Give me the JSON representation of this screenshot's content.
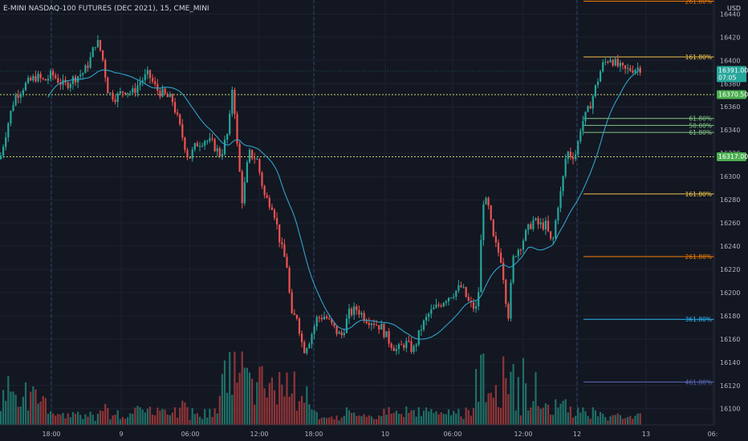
{
  "chart_data": {
    "type": "candlestick",
    "title": "E-MINI NASDAQ-100 FUTURES (DEC 2021), 15, CME_MINI",
    "y_unit": "USD",
    "ylim": [
      16086,
      16452
    ],
    "y_ticks": [
      16100,
      16120,
      16140,
      16160,
      16180,
      16200,
      16220,
      16240,
      16260,
      16280,
      16300,
      16320,
      16340,
      16360,
      16380,
      16400,
      16420,
      16440
    ],
    "x_ticks": [
      "18:00",
      "9",
      "06:00",
      "12:00",
      "18:00",
      "10",
      "06:00",
      "12:00",
      "12",
      "13",
      "06:"
    ],
    "grid": true,
    "price_labels": [
      {
        "value": 16391.0,
        "text": "16391.00",
        "subtext": "07:05",
        "color": "#26a69a"
      },
      {
        "value": 16370.5,
        "text": "16370.50",
        "color": "#4caf50"
      },
      {
        "value": 16317.0,
        "text": "16317.00",
        "color": "#4caf50"
      }
    ],
    "horizontal_lines": [
      {
        "value": 16370.5,
        "style": "dotted",
        "color": "#c7d66a"
      },
      {
        "value": 16317.0,
        "style": "dotted",
        "color": "#c7d66a"
      }
    ],
    "fib_levels": [
      {
        "label": "261.80%",
        "value": 16451,
        "color": "#f57c00"
      },
      {
        "label": "161.80%",
        "value": 16403,
        "color": "#f3c34b"
      },
      {
        "label": "61.80%",
        "value": 16350,
        "color": "#81c784"
      },
      {
        "label": "50.00%",
        "value": 16344,
        "color": "#81c784"
      },
      {
        "label": "61.80%",
        "value": 16338,
        "color": "#81c784"
      },
      {
        "label": "161.80%",
        "value": 16285,
        "color": "#f3c34b"
      },
      {
        "label": "261.80%",
        "value": 16231,
        "color": "#f57c00"
      },
      {
        "label": "361.80%",
        "value": 16177,
        "color": "#29b6f6"
      },
      {
        "label": "461.80%",
        "value": 16123,
        "color": "#5c6bc0"
      }
    ],
    "price_path": [
      [
        0,
        16315
      ],
      [
        8,
        16340
      ],
      [
        18,
        16368
      ],
      [
        30,
        16378
      ],
      [
        45,
        16386
      ],
      [
        55,
        16382
      ],
      [
        65,
        16388
      ],
      [
        80,
        16378
      ],
      [
        95,
        16386
      ],
      [
        105,
        16390
      ],
      [
        113,
        16402
      ],
      [
        120,
        16418
      ],
      [
        127,
        16405
      ],
      [
        135,
        16372
      ],
      [
        145,
        16368
      ],
      [
        155,
        16375
      ],
      [
        165,
        16372
      ],
      [
        175,
        16382
      ],
      [
        185,
        16388
      ],
      [
        195,
        16375
      ],
      [
        205,
        16370
      ],
      [
        215,
        16365
      ],
      [
        225,
        16340
      ],
      [
        235,
        16315
      ],
      [
        245,
        16328
      ],
      [
        255,
        16332
      ],
      [
        265,
        16328
      ],
      [
        275,
        16318
      ],
      [
        285,
        16340
      ],
      [
        290,
        16382
      ],
      [
        295,
        16330
      ],
      [
        302,
        16278
      ],
      [
        310,
        16320
      ],
      [
        320,
        16315
      ],
      [
        330,
        16282
      ],
      [
        340,
        16275
      ],
      [
        350,
        16240
      ],
      [
        358,
        16222
      ],
      [
        363,
        16178
      ],
      [
        370,
        16180
      ],
      [
        378,
        16150
      ],
      [
        386,
        16160
      ],
      [
        395,
        16178
      ],
      [
        405,
        16180
      ],
      [
        415,
        16170
      ],
      [
        425,
        16162
      ],
      [
        435,
        16182
      ],
      [
        445,
        16186
      ],
      [
        455,
        16178
      ],
      [
        465,
        16175
      ],
      [
        475,
        16170
      ],
      [
        485,
        16158
      ],
      [
        495,
        16150
      ],
      [
        505,
        16157
      ],
      [
        515,
        16150
      ],
      [
        525,
        16170
      ],
      [
        535,
        16182
      ],
      [
        545,
        16188
      ],
      [
        555,
        16195
      ],
      [
        565,
        16200
      ],
      [
        575,
        16205
      ],
      [
        585,
        16190
      ],
      [
        595,
        16185
      ],
      [
        602,
        16280
      ],
      [
        608,
        16275
      ],
      [
        615,
        16245
      ],
      [
        625,
        16228
      ],
      [
        633,
        16178
      ],
      [
        640,
        16232
      ],
      [
        648,
        16240
      ],
      [
        656,
        16252
      ],
      [
        664,
        16262
      ],
      [
        672,
        16258
      ],
      [
        680,
        16258
      ],
      [
        688,
        16240
      ],
      [
        695,
        16275
      ],
      [
        700,
        16290
      ],
      [
        706,
        16322
      ],
      [
        712,
        16318
      ],
      [
        718,
        16320
      ],
      [
        724,
        16345
      ],
      [
        732,
        16355
      ],
      [
        740,
        16372
      ],
      [
        750,
        16395
      ],
      [
        760,
        16403
      ],
      [
        768,
        16396
      ],
      [
        778,
        16391
      ],
      [
        788,
        16393
      ],
      [
        800,
        16394
      ]
    ],
    "moving_average": {
      "period": 20,
      "color": "#2fa3c8"
    },
    "volume": {
      "up_color": "#1f6f66",
      "down_color": "#8f3538"
    }
  }
}
